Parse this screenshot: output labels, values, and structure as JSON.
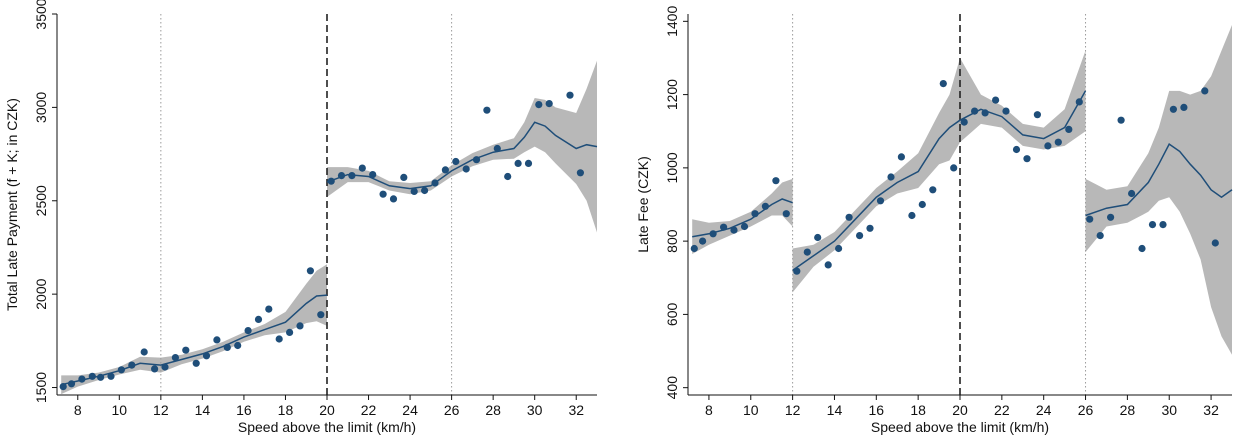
{
  "colors": {
    "marker": "#1f4e79",
    "line": "#1f4e79",
    "band": "#b8b8b8",
    "axis": "#111111",
    "refline_dotted": "#9a9a9a",
    "refline_dashed": "#222222"
  },
  "chart_data": [
    {
      "type": "scatter",
      "title": "",
      "xlabel": "Speed above the limit (km/h)",
      "ylabel": "Total Late Payment (f + K; in CZK)",
      "xlim": [
        7,
        33
      ],
      "ylim": [
        1460,
        3500
      ],
      "xticks": [
        8,
        10,
        12,
        14,
        16,
        18,
        20,
        22,
        24,
        26,
        28,
        30,
        32
      ],
      "yticks": [
        1500,
        2000,
        2500,
        3000,
        3500
      ],
      "grid": false,
      "legend": "none",
      "ref_lines": [
        {
          "x": 12,
          "style": "dotted"
        },
        {
          "x": 20,
          "style": "dashed"
        },
        {
          "x": 26,
          "style": "dotted"
        }
      ],
      "scatter": {
        "x": [
          7.3,
          7.7,
          8.2,
          8.7,
          9.1,
          9.6,
          10.1,
          10.6,
          11.2,
          11.7,
          12.2,
          12.7,
          13.2,
          13.7,
          14.2,
          14.7,
          15.2,
          15.7,
          16.2,
          16.7,
          17.2,
          17.7,
          18.2,
          18.7,
          19.2,
          19.7,
          20.2,
          20.7,
          21.2,
          21.7,
          22.2,
          22.7,
          23.2,
          23.7,
          24.2,
          24.7,
          25.2,
          25.7,
          26.2,
          26.7,
          27.2,
          27.7,
          28.2,
          28.7,
          29.2,
          29.7,
          30.2,
          30.7,
          31.7,
          32.2
        ],
        "y": [
          1505,
          1520,
          1545,
          1560,
          1555,
          1560,
          1595,
          1620,
          1690,
          1600,
          1610,
          1660,
          1700,
          1630,
          1670,
          1755,
          1715,
          1725,
          1805,
          1865,
          1920,
          1760,
          1795,
          1830,
          2125,
          1890,
          2605,
          2635,
          2635,
          2675,
          2640,
          2535,
          2510,
          2625,
          2550,
          2555,
          2595,
          2665,
          2710,
          2670,
          2720,
          2985,
          2780,
          2630,
          2700,
          2700,
          3015,
          3020,
          3065,
          2650
        ]
      },
      "fit_segments": [
        {
          "x": [
            7.2,
            8,
            9,
            10,
            11,
            12,
            13,
            14,
            15,
            16,
            17,
            18,
            19,
            19.5,
            20
          ],
          "y": [
            1515,
            1535,
            1560,
            1590,
            1630,
            1620,
            1650,
            1680,
            1720,
            1770,
            1810,
            1850,
            1950,
            1990,
            1995
          ],
          "lower": [
            1465,
            1505,
            1540,
            1570,
            1595,
            1580,
            1625,
            1655,
            1695,
            1745,
            1780,
            1795,
            1845,
            1855,
            1830
          ],
          "upper": [
            1565,
            1565,
            1580,
            1610,
            1665,
            1660,
            1675,
            1705,
            1745,
            1795,
            1840,
            1905,
            2055,
            2125,
            2160
          ]
        },
        {
          "x": [
            20,
            21,
            22,
            23,
            24,
            25,
            26,
            27,
            28,
            29,
            29.5,
            30,
            30.5,
            31,
            32,
            32.5,
            33
          ],
          "y": [
            2600,
            2640,
            2630,
            2580,
            2565,
            2580,
            2660,
            2720,
            2760,
            2780,
            2840,
            2920,
            2900,
            2850,
            2780,
            2800,
            2790
          ],
          "lower": [
            2520,
            2600,
            2600,
            2555,
            2535,
            2555,
            2630,
            2685,
            2720,
            2725,
            2760,
            2790,
            2760,
            2700,
            2590,
            2500,
            2330
          ],
          "upper": [
            2680,
            2680,
            2660,
            2605,
            2595,
            2605,
            2690,
            2755,
            2800,
            2835,
            2920,
            3050,
            3040,
            3000,
            2970,
            3100,
            3250
          ]
        }
      ]
    },
    {
      "type": "scatter",
      "title": "",
      "xlabel": "Speed above the limit (km/h)",
      "ylabel": "Late Fee (CZK)",
      "xlim": [
        7,
        33
      ],
      "ylim": [
        380,
        1420
      ],
      "xticks": [
        8,
        10,
        12,
        14,
        16,
        18,
        20,
        22,
        24,
        26,
        28,
        30,
        32
      ],
      "yticks": [
        400,
        600,
        800,
        1000,
        1200,
        1400
      ],
      "grid": false,
      "legend": "none",
      "ref_lines": [
        {
          "x": 12,
          "style": "dotted"
        },
        {
          "x": 20,
          "style": "dashed"
        },
        {
          "x": 26,
          "style": "dotted"
        }
      ],
      "scatter": {
        "x": [
          7.3,
          7.7,
          8.2,
          8.7,
          9.2,
          9.7,
          10.2,
          10.7,
          11.2,
          11.7,
          12.2,
          12.7,
          13.2,
          13.7,
          14.2,
          14.7,
          15.2,
          15.7,
          16.2,
          16.7,
          17.2,
          17.7,
          18.2,
          18.7,
          19.2,
          19.7,
          20.2,
          20.7,
          21.2,
          21.7,
          22.2,
          22.7,
          23.2,
          23.7,
          24.2,
          24.7,
          25.2,
          25.7,
          26.2,
          26.7,
          27.2,
          27.7,
          28.2,
          28.7,
          29.2,
          29.7,
          30.2,
          30.7,
          31.7,
          32.2
        ],
        "y": [
          780,
          800,
          820,
          838,
          830,
          840,
          875,
          895,
          965,
          875,
          718,
          770,
          810,
          735,
          780,
          865,
          815,
          835,
          910,
          975,
          1030,
          870,
          900,
          940,
          1230,
          1000,
          1125,
          1155,
          1150,
          1185,
          1155,
          1050,
          1025,
          1145,
          1060,
          1070,
          1105,
          1180,
          860,
          815,
          865,
          1130,
          930,
          780,
          845,
          845,
          1160,
          1165,
          1210,
          795
        ]
      },
      "fit_segments": [
        {
          "x": [
            7.2,
            8,
            9,
            10,
            11,
            11.5,
            12
          ],
          "y": [
            812,
            820,
            835,
            860,
            900,
            915,
            905
          ],
          "lower": [
            765,
            790,
            815,
            840,
            870,
            870,
            840
          ],
          "upper": [
            860,
            850,
            855,
            880,
            930,
            960,
            970
          ]
        },
        {
          "x": [
            12,
            13,
            14,
            15,
            16,
            17,
            18,
            19,
            19.5,
            20,
            21,
            22,
            23,
            24,
            25,
            26
          ],
          "y": [
            720,
            760,
            800,
            860,
            920,
            960,
            990,
            1080,
            1110,
            1130,
            1160,
            1140,
            1090,
            1080,
            1110,
            1210
          ],
          "lower": [
            660,
            730,
            775,
            835,
            895,
            930,
            945,
            1010,
            1020,
            1070,
            1120,
            1110,
            1060,
            1050,
            1060,
            1100
          ],
          "upper": [
            780,
            790,
            825,
            885,
            945,
            990,
            1040,
            1150,
            1200,
            1300,
            1200,
            1170,
            1120,
            1110,
            1160,
            1320
          ]
        },
        {
          "x": [
            26,
            27,
            28,
            29,
            29.5,
            30,
            30.5,
            31,
            31.5,
            32,
            32.5,
            33
          ],
          "y": [
            870,
            890,
            900,
            960,
            1010,
            1065,
            1045,
            1010,
            980,
            940,
            920,
            940
          ],
          "lower": [
            770,
            840,
            850,
            880,
            910,
            920,
            880,
            820,
            750,
            620,
            540,
            490
          ],
          "upper": [
            970,
            940,
            950,
            1040,
            1110,
            1210,
            1210,
            1200,
            1210,
            1250,
            1320,
            1390
          ]
        }
      ]
    }
  ]
}
